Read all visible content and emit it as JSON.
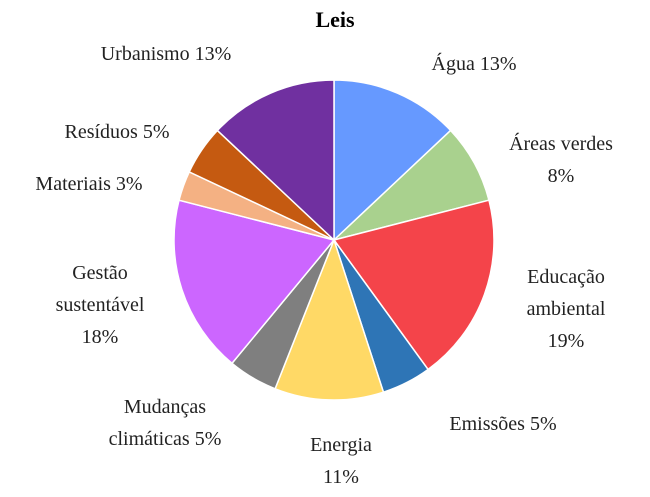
{
  "chart_data": {
    "type": "pie",
    "title": "Leis",
    "start_angle_deg": 0,
    "direction": "clockwise",
    "slices": [
      {
        "label": "Água 13%",
        "value": 13,
        "color": "#6699ff"
      },
      {
        "label": "Áreas verdes 8%",
        "value": 8,
        "color": "#a9d18e"
      },
      {
        "label": "Educação ambiental 19%",
        "value": 19,
        "color": "#f4444a"
      },
      {
        "label": "Emissões 5%",
        "value": 5,
        "color": "#2e75b6"
      },
      {
        "label": "Energia 11%",
        "value": 11,
        "color": "#ffd966"
      },
      {
        "label": "Mudanças climáticas 5%",
        "value": 5,
        "color": "#7f7f7f"
      },
      {
        "label": "Gestão sustentável 18%",
        "value": 18,
        "color": "#cc66ff"
      },
      {
        "label": "Materiais 3%",
        "value": 3,
        "color": "#f4b183"
      },
      {
        "label": "Resíduos 5%",
        "value": 5,
        "color": "#c55a11"
      },
      {
        "label": "Urbanismo 13%",
        "value": 13,
        "color": "#7030a0"
      }
    ]
  }
}
